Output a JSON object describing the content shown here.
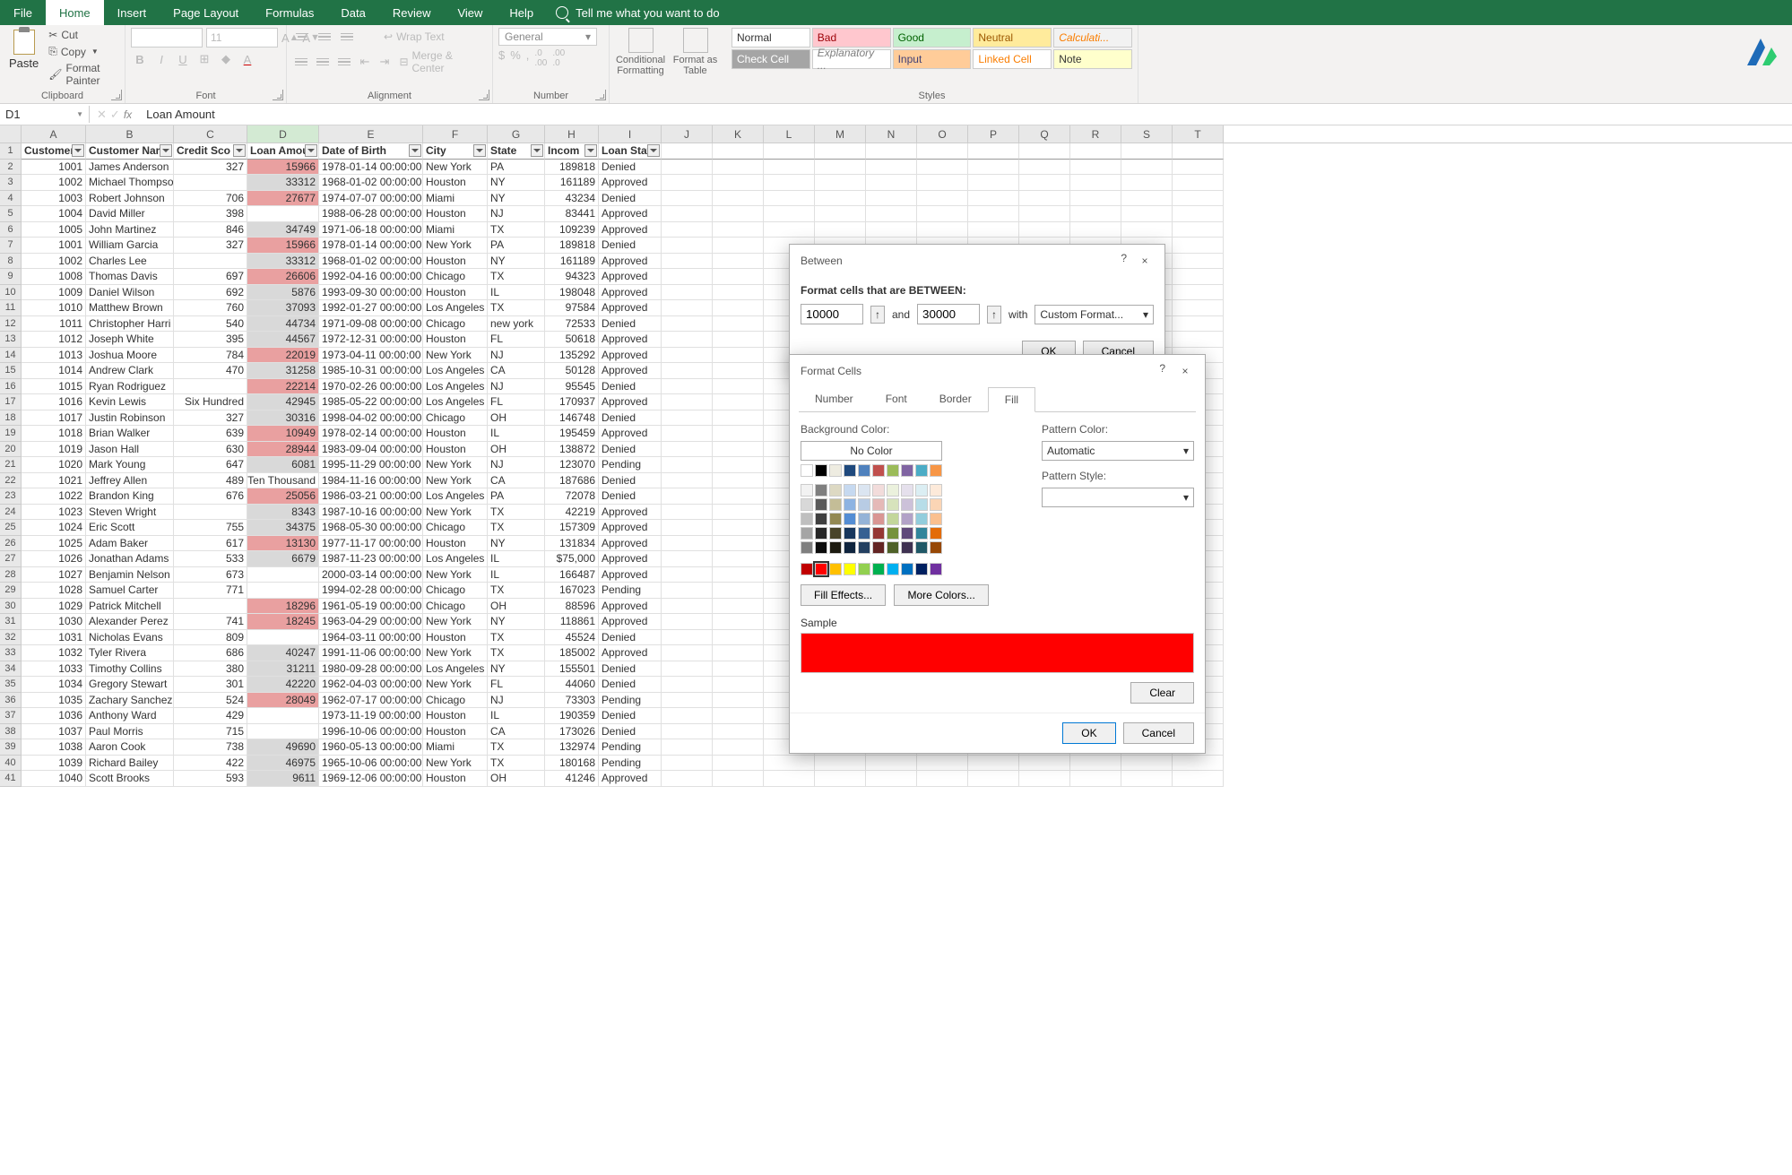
{
  "ribbon": {
    "tabs": [
      "File",
      "Home",
      "Insert",
      "Page Layout",
      "Formulas",
      "Data",
      "Review",
      "View",
      "Help"
    ],
    "active_tab": "Home",
    "tell_me": "Tell me what you want to do",
    "groups": {
      "clipboard": {
        "label": "Clipboard",
        "paste": "Paste",
        "cut": "Cut",
        "copy": "Copy",
        "format_painter": "Format Painter"
      },
      "font": {
        "label": "Font",
        "size": "11"
      },
      "alignment": {
        "label": "Alignment",
        "wrap": "Wrap Text",
        "merge": "Merge & Center"
      },
      "number": {
        "label": "Number",
        "format": "General"
      },
      "cond": {
        "label1": "Conditional",
        "label2": "Formatting",
        "fmt1": "Format as",
        "fmt2": "Table"
      },
      "styles": {
        "label": "Styles",
        "normal": "Normal",
        "bad": "Bad",
        "good": "Good",
        "neutral": "Neutral",
        "calc": "Calculati...",
        "check": "Check Cell",
        "explan": "Explanatory ...",
        "input": "Input",
        "linked": "Linked Cell",
        "note": "Note"
      }
    }
  },
  "formula_bar": {
    "name_box": "D1",
    "formula": "Loan Amount"
  },
  "columns": {
    "letters": [
      "A",
      "B",
      "C",
      "D",
      "E",
      "F",
      "G",
      "H",
      "I",
      "J",
      "K",
      "L",
      "M",
      "N",
      "O",
      "P",
      "Q",
      "R",
      "S",
      "T"
    ],
    "active": "D",
    "headers": [
      "Customer",
      "Customer Nam",
      "Credit Sco",
      "Loan Amou",
      "Date of Birth",
      "City",
      "State",
      "Incom",
      "Loan Stat"
    ]
  },
  "rows": [
    {
      "n": 1,
      "hdr": true
    },
    {
      "n": 2,
      "a": "1001",
      "b": "James Anderson",
      "c": "327",
      "d": "15966",
      "dh": "red",
      "e": "1978-01-14 00:00:00",
      "f": "New York",
      "g": "PA",
      "h": "189818",
      "i": "Denied"
    },
    {
      "n": 3,
      "a": "1002",
      "b": "Michael Thompson",
      "c": "",
      "d": "33312",
      "dh": "gray",
      "e": "1968-01-02 00:00:00",
      "f": "Houston",
      "g": "NY",
      "h": "161189",
      "i": "Approved"
    },
    {
      "n": 4,
      "a": "1003",
      "b": "Robert Johnson",
      "c": "706",
      "d": "27677",
      "dh": "red",
      "e": "1974-07-07 00:00:00",
      "f": "Miami",
      "g": "NY",
      "h": "43234",
      "i": "Denied"
    },
    {
      "n": 5,
      "a": "1004",
      "b": "David Miller",
      "c": "398",
      "d": "",
      "dh": "",
      "e": "1988-06-28 00:00:00",
      "f": "Houston",
      "g": "NJ",
      "h": "83441",
      "i": "Approved"
    },
    {
      "n": 6,
      "a": "1005",
      "b": "John Martinez",
      "c": "846",
      "d": "34749",
      "dh": "gray",
      "e": "1971-06-18 00:00:00",
      "f": "Miami",
      "g": "TX",
      "h": "109239",
      "i": "Approved"
    },
    {
      "n": 7,
      "a": "1001",
      "b": "William Garcia",
      "c": "327",
      "d": "15966",
      "dh": "red",
      "e": "1978-01-14 00:00:00",
      "f": "New York",
      "g": "PA",
      "h": "189818",
      "i": "Denied"
    },
    {
      "n": 8,
      "a": "1002",
      "b": "Charles Lee",
      "c": "",
      "d": "33312",
      "dh": "gray",
      "e": "1968-01-02 00:00:00",
      "f": "Houston",
      "g": "NY",
      "h": "161189",
      "i": "Approved"
    },
    {
      "n": 9,
      "a": "1008",
      "b": "Thomas Davis",
      "c": "697",
      "d": "26606",
      "dh": "red",
      "e": "1992-04-16 00:00:00",
      "f": "Chicago",
      "g": "TX",
      "h": "94323",
      "i": "Approved"
    },
    {
      "n": 10,
      "a": "1009",
      "b": "Daniel Wilson",
      "c": "692",
      "d": "5876",
      "dh": "gray",
      "e": "1993-09-30 00:00:00",
      "f": "Houston",
      "g": "IL",
      "h": "198048",
      "i": "Approved"
    },
    {
      "n": 11,
      "a": "1010",
      "b": "Matthew Brown",
      "c": "760",
      "d": "37093",
      "dh": "gray",
      "e": "1992-01-27 00:00:00",
      "f": "Los Angeles",
      "g": "TX",
      "h": "97584",
      "i": "Approved"
    },
    {
      "n": 12,
      "a": "1011",
      "b": "Christopher Harri",
      "c": "540",
      "d": "44734",
      "dh": "gray",
      "e": "1971-09-08 00:00:00",
      "f": "Chicago",
      "g": "new york",
      "h": "72533",
      "i": "Denied"
    },
    {
      "n": 13,
      "a": "1012",
      "b": "Joseph White",
      "c": "395",
      "d": "44567",
      "dh": "gray",
      "e": "1972-12-31 00:00:00",
      "f": "Houston",
      "g": "FL",
      "h": "50618",
      "i": "Approved"
    },
    {
      "n": 14,
      "a": "1013",
      "b": "Joshua Moore",
      "c": "784",
      "d": "22019",
      "dh": "red",
      "e": "1973-04-11 00:00:00",
      "f": "New York",
      "g": "NJ",
      "h": "135292",
      "i": "Approved"
    },
    {
      "n": 15,
      "a": "1014",
      "b": "Andrew Clark",
      "c": "470",
      "d": "31258",
      "dh": "gray",
      "e": "1985-10-31 00:00:00",
      "f": "Los Angeles",
      "g": "CA",
      "h": "50128",
      "i": "Approved"
    },
    {
      "n": 16,
      "a": "1015",
      "b": "Ryan Rodriguez",
      "c": "",
      "d": "22214",
      "dh": "red",
      "e": "1970-02-26 00:00:00",
      "f": "Los Angeles",
      "g": "NJ",
      "h": "95545",
      "i": "Denied"
    },
    {
      "n": 17,
      "a": "1016",
      "b": "Kevin Lewis",
      "c": "Six Hundred",
      "d": "42945",
      "dh": "gray",
      "e": "1985-05-22 00:00:00",
      "f": "Los Angeles",
      "g": "FL",
      "h": "170937",
      "i": "Approved"
    },
    {
      "n": 18,
      "a": "1017",
      "b": "Justin Robinson",
      "c": "327",
      "d": "30316",
      "dh": "gray",
      "e": "1998-04-02 00:00:00",
      "f": "Chicago",
      "g": "OH",
      "h": "146748",
      "i": "Denied"
    },
    {
      "n": 19,
      "a": "1018",
      "b": "Brian Walker",
      "c": "639",
      "d": "10949",
      "dh": "red",
      "e": "1978-02-14 00:00:00",
      "f": "Houston",
      "g": "IL",
      "h": "195459",
      "i": "Approved"
    },
    {
      "n": 20,
      "a": "1019",
      "b": "Jason Hall",
      "c": "630",
      "d": "28944",
      "dh": "red",
      "e": "1983-09-04 00:00:00",
      "f": "Houston",
      "g": "OH",
      "h": "138872",
      "i": "Denied"
    },
    {
      "n": 21,
      "a": "1020",
      "b": "Mark Young",
      "c": "647",
      "d": "6081",
      "dh": "gray",
      "e": "1995-11-29 00:00:00",
      "f": "New York",
      "g": "NJ",
      "h": "123070",
      "i": "Pending"
    },
    {
      "n": 22,
      "a": "1021",
      "b": "Jeffrey Allen",
      "c": "489",
      "d": "Ten Thousand",
      "dh": "",
      "e": "1984-11-16 00:00:00",
      "f": "New York",
      "g": "CA",
      "h": "187686",
      "i": "Denied"
    },
    {
      "n": 23,
      "a": "1022",
      "b": "Brandon King",
      "c": "676",
      "d": "25056",
      "dh": "red",
      "e": "1986-03-21 00:00:00",
      "f": "Los Angeles",
      "g": "PA",
      "h": "72078",
      "i": "Denied"
    },
    {
      "n": 24,
      "a": "1023",
      "b": "Steven Wright",
      "c": "",
      "d": "8343",
      "dh": "gray",
      "e": "1987-10-16 00:00:00",
      "f": "New York",
      "g": "TX",
      "h": "42219",
      "i": "Approved"
    },
    {
      "n": 25,
      "a": "1024",
      "b": "Eric Scott",
      "c": "755",
      "d": "34375",
      "dh": "gray",
      "e": "1968-05-30 00:00:00",
      "f": "Chicago",
      "g": "TX",
      "h": "157309",
      "i": "Approved"
    },
    {
      "n": 26,
      "a": "1025",
      "b": "Adam Baker",
      "c": "617",
      "d": "13130",
      "dh": "red",
      "e": "1977-11-17 00:00:00",
      "f": "Houston",
      "g": "NY",
      "h": "131834",
      "i": "Approved"
    },
    {
      "n": 27,
      "a": "1026",
      "b": "Jonathan Adams",
      "c": "533",
      "d": "6679",
      "dh": "gray",
      "e": "1987-11-23 00:00:00",
      "f": "Los Angeles",
      "g": "IL",
      "h": "$75,000",
      "i": "Approved"
    },
    {
      "n": 28,
      "a": "1027",
      "b": "Benjamin Nelson",
      "c": "673",
      "d": "",
      "dh": "",
      "e": "2000-03-14 00:00:00",
      "f": "New York",
      "g": "IL",
      "h": "166487",
      "i": "Approved"
    },
    {
      "n": 29,
      "a": "1028",
      "b": "Samuel Carter",
      "c": "771",
      "d": "",
      "dh": "",
      "e": "1994-02-28 00:00:00",
      "f": "Chicago",
      "g": "TX",
      "h": "167023",
      "i": "Pending"
    },
    {
      "n": 30,
      "a": "1029",
      "b": "Patrick Mitchell",
      "c": "",
      "d": "18296",
      "dh": "red",
      "e": "1961-05-19 00:00:00",
      "f": "Chicago",
      "g": "OH",
      "h": "88596",
      "i": "Approved"
    },
    {
      "n": 31,
      "a": "1030",
      "b": "Alexander Perez",
      "c": "741",
      "d": "18245",
      "dh": "red",
      "e": "1963-04-29 00:00:00",
      "f": "New York",
      "g": "NY",
      "h": "118861",
      "i": "Approved"
    },
    {
      "n": 32,
      "a": "1031",
      "b": "Nicholas Evans",
      "c": "809",
      "d": "",
      "dh": "",
      "e": "1964-03-11 00:00:00",
      "f": "Houston",
      "g": "TX",
      "h": "45524",
      "i": "Denied"
    },
    {
      "n": 33,
      "a": "1032",
      "b": "Tyler Rivera",
      "c": "686",
      "d": "40247",
      "dh": "gray",
      "e": "1991-11-06 00:00:00",
      "f": "New York",
      "g": "TX",
      "h": "185002",
      "i": "Approved"
    },
    {
      "n": 34,
      "a": "1033",
      "b": "Timothy Collins",
      "c": "380",
      "d": "31211",
      "dh": "gray",
      "e": "1980-09-28 00:00:00",
      "f": "Los Angeles",
      "g": "NY",
      "h": "155501",
      "i": "Denied"
    },
    {
      "n": 35,
      "a": "1034",
      "b": "Gregory Stewart",
      "c": "301",
      "d": "42220",
      "dh": "gray",
      "e": "1962-04-03 00:00:00",
      "f": "New York",
      "g": "FL",
      "h": "44060",
      "i": "Denied"
    },
    {
      "n": 36,
      "a": "1035",
      "b": "Zachary Sanchez",
      "c": "524",
      "d": "28049",
      "dh": "red",
      "e": "1962-07-17 00:00:00",
      "f": "Chicago",
      "g": "NJ",
      "h": "73303",
      "i": "Pending"
    },
    {
      "n": 37,
      "a": "1036",
      "b": "Anthony Ward",
      "c": "429",
      "d": "",
      "dh": "",
      "e": "1973-11-19 00:00:00",
      "f": "Houston",
      "g": "IL",
      "h": "190359",
      "i": "Denied"
    },
    {
      "n": 38,
      "a": "1037",
      "b": "Paul Morris",
      "c": "715",
      "d": "",
      "dh": "",
      "e": "1996-10-06 00:00:00",
      "f": "Houston",
      "g": "CA",
      "h": "173026",
      "i": "Denied"
    },
    {
      "n": 39,
      "a": "1038",
      "b": "Aaron Cook",
      "c": "738",
      "d": "49690",
      "dh": "gray",
      "e": "1960-05-13 00:00:00",
      "f": "Miami",
      "g": "TX",
      "h": "132974",
      "i": "Pending"
    },
    {
      "n": 40,
      "a": "1039",
      "b": "Richard Bailey",
      "c": "422",
      "d": "46975",
      "dh": "gray",
      "e": "1965-10-06 00:00:00",
      "f": "New York",
      "g": "TX",
      "h": "180168",
      "i": "Pending"
    },
    {
      "n": 41,
      "a": "1040",
      "b": "Scott Brooks",
      "c": "593",
      "d": "9611",
      "dh": "gray",
      "e": "1969-12-06 00:00:00",
      "f": "Houston",
      "g": "OH",
      "h": "41246",
      "i": "Approved"
    }
  ],
  "between_dialog": {
    "title": "Between",
    "label": "Format cells that are BETWEEN:",
    "val1": "10000",
    "and": "and",
    "val2": "30000",
    "with": "with",
    "format": "Custom Format...",
    "ok": "OK",
    "cancel": "Cancel",
    "help": "?",
    "close": "×"
  },
  "format_dialog": {
    "title": "Format Cells",
    "help": "?",
    "close": "×",
    "tabs": [
      "Number",
      "Font",
      "Border",
      "Fill"
    ],
    "active_tab": "Fill",
    "bg_label": "Background Color:",
    "no_color": "No Color",
    "fill_effects": "Fill Effects...",
    "more_colors": "More Colors...",
    "pattern_color": "Pattern Color:",
    "automatic": "Automatic",
    "pattern_style": "Pattern Style:",
    "sample": "Sample",
    "sample_color": "#ff0000",
    "clear": "Clear",
    "ok": "OK",
    "cancel": "Cancel",
    "palette_row1": [
      "#ffffff",
      "#000000",
      "#eeece1",
      "#1f497d",
      "#4f81bd",
      "#c0504d",
      "#9bbb59",
      "#8064a2",
      "#4bacc6",
      "#f79646"
    ],
    "palette_tints": [
      [
        "#f2f2f2",
        "#7f7f7f",
        "#ddd9c3",
        "#c6d9f0",
        "#dbe5f1",
        "#f2dcdb",
        "#ebf1dd",
        "#e5e0ec",
        "#dbeef3",
        "#fdeada"
      ],
      [
        "#d8d8d8",
        "#595959",
        "#c4bd97",
        "#8db3e2",
        "#b8cce4",
        "#e5b9b7",
        "#d7e3bc",
        "#ccc1d9",
        "#b7dde8",
        "#fbd5b5"
      ],
      [
        "#bfbfbf",
        "#3f3f3f",
        "#938953",
        "#548dd4",
        "#95b3d7",
        "#d99694",
        "#c3d69b",
        "#b2a2c7",
        "#92cddc",
        "#fac08f"
      ],
      [
        "#a5a5a5",
        "#262626",
        "#494429",
        "#17365d",
        "#366092",
        "#953734",
        "#76923c",
        "#5f497a",
        "#31859b",
        "#e36c09"
      ],
      [
        "#7f7f7f",
        "#0c0c0c",
        "#1d1b10",
        "#0f243e",
        "#244061",
        "#632423",
        "#4f6128",
        "#3f3151",
        "#205867",
        "#974806"
      ]
    ],
    "standard": [
      "#c00000",
      "#ff0000",
      "#ffc000",
      "#ffff00",
      "#92d050",
      "#00b050",
      "#00b0f0",
      "#0070c0",
      "#002060",
      "#7030a0"
    ]
  }
}
